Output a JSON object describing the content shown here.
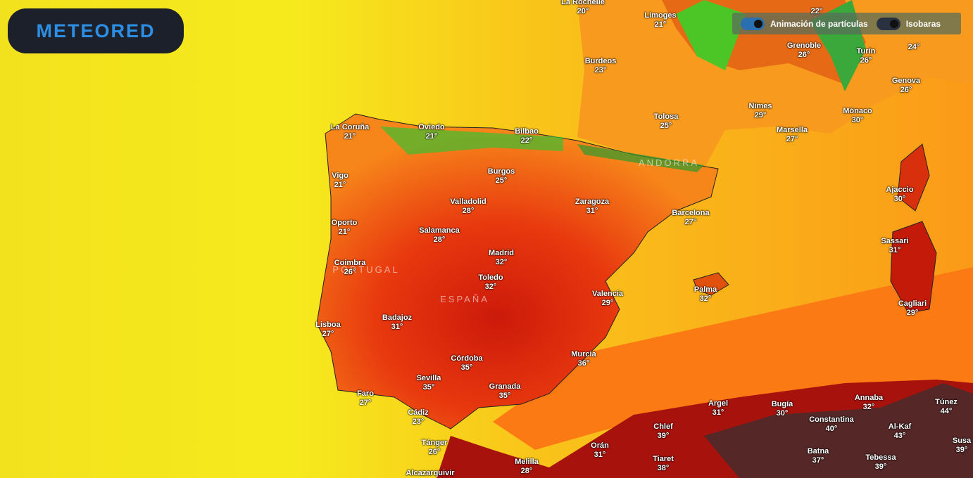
{
  "header": {
    "logo": "METEORED"
  },
  "controls": {
    "particles": "Animación de partículas",
    "isobars": "Isobaras"
  },
  "regions": [
    "PORTUGAL",
    "ESPAÑA",
    "ANDORRA"
  ],
  "cities": [
    {
      "name": "La Rochelle",
      "temp": "20°"
    },
    {
      "temp": "22°"
    },
    {
      "name": "Limoges",
      "temp": "21°"
    },
    {
      "temp": "24°"
    },
    {
      "name": "Grenoble",
      "temp": "26°"
    },
    {
      "name": "Turín",
      "temp": "26°"
    },
    {
      "name": "Burdeos",
      "temp": "23°"
    },
    {
      "name": "Genova",
      "temp": "26°"
    },
    {
      "name": "Nimes",
      "temp": "29°"
    },
    {
      "name": "Mónaco",
      "temp": "30°"
    },
    {
      "name": "Tolosa",
      "temp": "25°"
    },
    {
      "name": "Marsella",
      "temp": "27°"
    },
    {
      "name": "La Coruña",
      "temp": "21°"
    },
    {
      "name": "Oviedo",
      "temp": "21°"
    },
    {
      "name": "Bilbao",
      "temp": "22°"
    },
    {
      "name": "Burgos",
      "temp": "25°"
    },
    {
      "name": "Vigo",
      "temp": "21°"
    },
    {
      "name": "Ajaccio",
      "temp": "30°"
    },
    {
      "name": "Valladolid",
      "temp": "28°"
    },
    {
      "name": "Zaragoza",
      "temp": "31°"
    },
    {
      "name": "Barcelona",
      "temp": "27°"
    },
    {
      "name": "Oporto",
      "temp": "21°"
    },
    {
      "name": "Salamanca",
      "temp": "28°"
    },
    {
      "name": "Sassari",
      "temp": "31°"
    },
    {
      "name": "Madrid",
      "temp": "32°"
    },
    {
      "name": "Coimbra",
      "temp": "26°"
    },
    {
      "name": "Toledo",
      "temp": "32°"
    },
    {
      "name": "Valencia",
      "temp": "29°"
    },
    {
      "name": "Palma",
      "temp": "32°"
    },
    {
      "name": "Cagliari",
      "temp": "29°"
    },
    {
      "name": "Badajoz",
      "temp": "31°"
    },
    {
      "name": "Lisboa",
      "temp": "27°"
    },
    {
      "name": "Murcia",
      "temp": "36°"
    },
    {
      "name": "Córdoba",
      "temp": "35°"
    },
    {
      "name": "Sevilla",
      "temp": "35°"
    },
    {
      "name": "Granada",
      "temp": "35°"
    },
    {
      "name": "Faro",
      "temp": "27°"
    },
    {
      "name": "Túnez",
      "temp": "44°"
    },
    {
      "name": "Argel",
      "temp": "31°"
    },
    {
      "name": "Bugía",
      "temp": "30°"
    },
    {
      "name": "Annaba",
      "temp": "32°"
    },
    {
      "name": "Cádiz",
      "temp": "23°"
    },
    {
      "name": "Constantina",
      "temp": "40°"
    },
    {
      "name": "Chlef",
      "temp": "39°"
    },
    {
      "name": "Al-Kaf",
      "temp": "43°"
    },
    {
      "name": "Tánger",
      "temp": "26°"
    },
    {
      "name": "Orán",
      "temp": "31°"
    },
    {
      "name": "Susa",
      "temp": "39°"
    },
    {
      "name": "Batna",
      "temp": "37°"
    },
    {
      "name": "Tiaret",
      "temp": "38°"
    },
    {
      "name": "Tebessa",
      "temp": "39°"
    },
    {
      "name": "Melilla",
      "temp": "28°"
    },
    {
      "name": "Alcazarquivir"
    }
  ]
}
